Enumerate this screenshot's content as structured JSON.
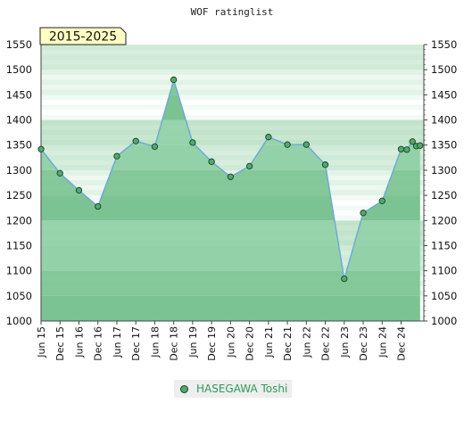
{
  "chart_data": {
    "type": "area",
    "title": "WOF ratinglist",
    "period_label": "2015-2025",
    "ylim": [
      1000,
      1550
    ],
    "yticks": [
      1000,
      1050,
      1100,
      1150,
      1200,
      1250,
      1300,
      1350,
      1400,
      1450,
      1500,
      1550
    ],
    "xlim": [
      0,
      20.2
    ],
    "categories": [
      "Jun 15",
      "Dec 15",
      "Jun 16",
      "Dec 16",
      "Jun 17",
      "Dec 17",
      "Jun 18",
      "Dec 18",
      "Jun 19",
      "Dec 19",
      "Jun 20",
      "Dec 20",
      "Jun 21",
      "Dec 21",
      "Jun 22",
      "Dec 22",
      "Jun 23",
      "Dec 23",
      "Jun 24",
      "Dec 24"
    ],
    "grid": true,
    "legend_position": "bottom",
    "colors": {
      "line": "#6aa9d8",
      "marker": "#4faa6e",
      "marker_edge": "#1f3d28",
      "band_dark": "#7cc393",
      "band_light": "#93d1a8"
    },
    "series": [
      {
        "name": "HASEGAWA Toshi",
        "x": [
          0,
          1,
          2,
          3,
          4,
          5,
          6,
          7,
          8,
          9,
          10,
          11,
          12,
          13,
          14,
          15,
          16,
          17,
          18,
          19,
          19.3,
          19.6,
          19.8,
          20.0
        ],
        "y": [
          1342,
          1294,
          1260,
          1228,
          1328,
          1358,
          1347,
          1480,
          1355,
          1317,
          1287,
          1308,
          1366,
          1351,
          1351,
          1311,
          1084,
          1215,
          1239,
          1342,
          1341,
          1357,
          1348,
          1349
        ]
      }
    ]
  }
}
